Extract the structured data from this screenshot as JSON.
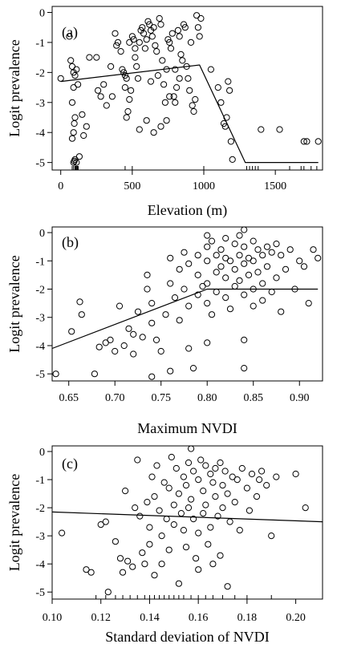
{
  "chart_data": [
    {
      "type": "scatter",
      "panel_label": "(a)",
      "xlabel": "Elevation (m)",
      "ylabel": "Logit prevalence",
      "xlim": [
        -60,
        1830
      ],
      "ylim": [
        -5.25,
        0.2
      ],
      "xticks": [
        0,
        500,
        1000,
        1500
      ],
      "yticks": [
        0,
        -1,
        -2,
        -3,
        -4,
        -5
      ],
      "fit_line": [
        [
          0,
          -2.3
        ],
        [
          970,
          -1.75
        ],
        [
          1290,
          -5.0
        ],
        [
          1800,
          -5.0
        ]
      ],
      "rug": [
        80,
        90,
        100,
        105,
        110,
        115,
        118,
        122,
        450,
        500,
        1000,
        1300,
        1320,
        1340,
        1360,
        1380,
        1600,
        1680,
        1700,
        1750,
        1790
      ],
      "points": [
        [
          0,
          -2.2
        ],
        [
          60,
          -0.8
        ],
        [
          70,
          -1.6
        ],
        [
          80,
          -1.8
        ],
        [
          90,
          -2.0
        ],
        [
          100,
          -2.1
        ],
        [
          110,
          -1.9
        ],
        [
          120,
          -2.4
        ],
        [
          90,
          -2.5
        ],
        [
          80,
          -3.0
        ],
        [
          100,
          -3.5
        ],
        [
          95,
          -3.7
        ],
        [
          90,
          -4.0
        ],
        [
          80,
          -4.2
        ],
        [
          100,
          -4.9
        ],
        [
          110,
          -5.0
        ],
        [
          90,
          -5.0
        ],
        [
          95,
          -4.95
        ],
        [
          130,
          -4.8
        ],
        [
          150,
          -3.4
        ],
        [
          160,
          -4.1
        ],
        [
          180,
          -3.8
        ],
        [
          200,
          -1.5
        ],
        [
          250,
          -1.5
        ],
        [
          260,
          -2.6
        ],
        [
          280,
          -2.8
        ],
        [
          300,
          -2.4
        ],
        [
          320,
          -3.1
        ],
        [
          350,
          -1.8
        ],
        [
          360,
          -2.8
        ],
        [
          380,
          -0.7
        ],
        [
          390,
          -1.1
        ],
        [
          400,
          -1.0
        ],
        [
          420,
          -1.3
        ],
        [
          430,
          -1.9
        ],
        [
          440,
          -2.0
        ],
        [
          450,
          -2.1
        ],
        [
          460,
          -2.2
        ],
        [
          450,
          -2.5
        ],
        [
          460,
          -3.5
        ],
        [
          470,
          -3.3
        ],
        [
          480,
          -2.9
        ],
        [
          490,
          -2.6
        ],
        [
          500,
          -0.8
        ],
        [
          510,
          -0.9
        ],
        [
          520,
          -1.5
        ],
        [
          530,
          -1.8
        ],
        [
          540,
          -2.2
        ],
        [
          550,
          -1.0
        ],
        [
          560,
          -0.6
        ],
        [
          570,
          -0.5
        ],
        [
          580,
          -0.7
        ],
        [
          590,
          -1.2
        ],
        [
          600,
          -0.9
        ],
        [
          610,
          -0.3
        ],
        [
          620,
          -0.4
        ],
        [
          630,
          -0.6
        ],
        [
          640,
          -0.8
        ],
        [
          650,
          -0.5
        ],
        [
          660,
          -1.1
        ],
        [
          670,
          -1.3
        ],
        [
          680,
          -2.1
        ],
        [
          690,
          -0.2
        ],
        [
          700,
          -0.4
        ],
        [
          710,
          -1.6
        ],
        [
          720,
          -2.4
        ],
        [
          730,
          -3.0
        ],
        [
          740,
          -3.6
        ],
        [
          750,
          -0.9
        ],
        [
          760,
          -1.0
        ],
        [
          770,
          -1.2
        ],
        [
          780,
          -0.7
        ],
        [
          790,
          -2.8
        ],
        [
          800,
          -3.0
        ],
        [
          810,
          -2.5
        ],
        [
          820,
          -0.6
        ],
        [
          830,
          -0.8
        ],
        [
          840,
          -1.4
        ],
        [
          850,
          -1.6
        ],
        [
          860,
          -0.4
        ],
        [
          870,
          -0.5
        ],
        [
          880,
          -1.8
        ],
        [
          890,
          -2.2
        ],
        [
          900,
          -2.6
        ],
        [
          910,
          -1.0
        ],
        [
          920,
          -3.1
        ],
        [
          930,
          -3.3
        ],
        [
          940,
          -2.9
        ],
        [
          950,
          -0.1
        ],
        [
          960,
          -0.5
        ],
        [
          970,
          -0.8
        ],
        [
          980,
          -0.2
        ],
        [
          1050,
          -1.9
        ],
        [
          1100,
          -2.5
        ],
        [
          1120,
          -3.0
        ],
        [
          1140,
          -3.7
        ],
        [
          1150,
          -3.8
        ],
        [
          1160,
          -3.5
        ],
        [
          1170,
          -2.3
        ],
        [
          1180,
          -2.6
        ],
        [
          1190,
          -4.3
        ],
        [
          1200,
          -4.9
        ],
        [
          1400,
          -3.9
        ],
        [
          1530,
          -3.9
        ],
        [
          1700,
          -4.3
        ],
        [
          1720,
          -4.3
        ],
        [
          1800,
          -4.3
        ],
        [
          650,
          -4.0
        ],
        [
          550,
          -3.9
        ],
        [
          600,
          -3.6
        ],
        [
          700,
          -3.8
        ],
        [
          480,
          -1.0
        ],
        [
          520,
          -1.2
        ],
        [
          740,
          -1.9
        ],
        [
          760,
          -2.8
        ],
        [
          630,
          -2.3
        ],
        [
          800,
          -1.9
        ],
        [
          830,
          -2.2
        ]
      ]
    },
    {
      "type": "scatter",
      "panel_label": "(b)",
      "xlabel": "Maximum NVDI",
      "ylabel": "Logit prevalence",
      "xlim": [
        0.632,
        0.925
      ],
      "ylim": [
        -5.25,
        0.2
      ],
      "xticks": [
        0.65,
        0.7,
        0.75,
        0.8,
        0.85,
        0.9
      ],
      "xtick_labels": [
        "0.65",
        "0.70",
        "0.75",
        "0.80",
        "0.85",
        "0.90"
      ],
      "yticks": [
        0,
        -1,
        -2,
        -3,
        -4,
        -5
      ],
      "fit_line": [
        [
          0.632,
          -4.1
        ],
        [
          0.8,
          -2.0
        ],
        [
          0.92,
          -2.0
        ]
      ],
      "points": [
        [
          0.636,
          -5.0
        ],
        [
          0.653,
          -3.5
        ],
        [
          0.662,
          -2.45
        ],
        [
          0.664,
          -2.9
        ],
        [
          0.678,
          -5.0
        ],
        [
          0.683,
          -4.05
        ],
        [
          0.69,
          -3.9
        ],
        [
          0.695,
          -3.8
        ],
        [
          0.7,
          -4.2
        ],
        [
          0.705,
          -2.6
        ],
        [
          0.71,
          -4.0
        ],
        [
          0.715,
          -3.4
        ],
        [
          0.72,
          -3.6
        ],
        [
          0.72,
          -4.3
        ],
        [
          0.725,
          -2.8
        ],
        [
          0.73,
          -3.7
        ],
        [
          0.735,
          -2.0
        ],
        [
          0.735,
          -1.5
        ],
        [
          0.74,
          -2.5
        ],
        [
          0.74,
          -3.2
        ],
        [
          0.74,
          -5.1
        ],
        [
          0.745,
          -3.8
        ],
        [
          0.75,
          -4.2
        ],
        [
          0.755,
          -2.9
        ],
        [
          0.76,
          -0.9
        ],
        [
          0.76,
          -1.8
        ],
        [
          0.76,
          -4.9
        ],
        [
          0.765,
          -2.3
        ],
        [
          0.77,
          -1.3
        ],
        [
          0.77,
          -3.1
        ],
        [
          0.775,
          -0.7
        ],
        [
          0.775,
          -2.0
        ],
        [
          0.78,
          -1.1
        ],
        [
          0.78,
          -2.6
        ],
        [
          0.78,
          -4.1
        ],
        [
          0.785,
          -4.8
        ],
        [
          0.79,
          -0.8
        ],
        [
          0.79,
          -1.5
        ],
        [
          0.79,
          -2.2
        ],
        [
          0.795,
          -1.9
        ],
        [
          0.8,
          -0.1
        ],
        [
          0.8,
          -0.5
        ],
        [
          0.8,
          -1.0
        ],
        [
          0.8,
          -1.8
        ],
        [
          0.8,
          -2.5
        ],
        [
          0.8,
          -3.9
        ],
        [
          0.805,
          -0.3
        ],
        [
          0.805,
          -2.9
        ],
        [
          0.81,
          -0.8
        ],
        [
          0.81,
          -1.4
        ],
        [
          0.81,
          -2.1
        ],
        [
          0.815,
          -0.6
        ],
        [
          0.815,
          -1.2
        ],
        [
          0.82,
          -0.2
        ],
        [
          0.82,
          -0.9
        ],
        [
          0.82,
          -1.6
        ],
        [
          0.82,
          -2.3
        ],
        [
          0.825,
          -1.0
        ],
        [
          0.825,
          -2.7
        ],
        [
          0.83,
          -0.4
        ],
        [
          0.83,
          -1.3
        ],
        [
          0.83,
          -1.9
        ],
        [
          0.835,
          -0.1
        ],
        [
          0.835,
          -0.8
        ],
        [
          0.835,
          -1.7
        ],
        [
          0.84,
          0.1
        ],
        [
          0.84,
          -0.5
        ],
        [
          0.84,
          -1.1
        ],
        [
          0.84,
          -2.2
        ],
        [
          0.84,
          -3.8
        ],
        [
          0.84,
          -4.8
        ],
        [
          0.845,
          -0.9
        ],
        [
          0.845,
          -1.5
        ],
        [
          0.85,
          -0.3
        ],
        [
          0.85,
          -1.0
        ],
        [
          0.85,
          -2.0
        ],
        [
          0.85,
          -2.6
        ],
        [
          0.855,
          -0.6
        ],
        [
          0.855,
          -1.4
        ],
        [
          0.86,
          -0.8
        ],
        [
          0.86,
          -1.8
        ],
        [
          0.86,
          -2.4
        ],
        [
          0.865,
          -0.5
        ],
        [
          0.865,
          -1.2
        ],
        [
          0.87,
          -0.7
        ],
        [
          0.87,
          -2.1
        ],
        [
          0.875,
          -0.4
        ],
        [
          0.875,
          -1.6
        ],
        [
          0.88,
          -0.8
        ],
        [
          0.88,
          -2.8
        ],
        [
          0.885,
          -1.3
        ],
        [
          0.89,
          -0.6
        ],
        [
          0.895,
          -2.0
        ],
        [
          0.9,
          -1.0
        ],
        [
          0.905,
          -1.2
        ],
        [
          0.91,
          -2.5
        ],
        [
          0.915,
          -0.6
        ],
        [
          0.92,
          -0.9
        ]
      ]
    },
    {
      "type": "scatter",
      "panel_label": "(c)",
      "xlabel": "Standard deviation of NVDI",
      "ylabel": "Logit prevalence",
      "xlim": [
        0.1,
        0.211
      ],
      "ylim": [
        -5.25,
        0.2
      ],
      "xticks": [
        0.1,
        0.12,
        0.14,
        0.16,
        0.18,
        0.2
      ],
      "xtick_labels": [
        "0.10",
        "0.12",
        "0.14",
        "0.16",
        "0.18",
        "0.20"
      ],
      "yticks": [
        0,
        -1,
        -2,
        -3,
        -4,
        -5
      ],
      "fit_line": [
        [
          0.1,
          -2.15
        ],
        [
          0.211,
          -2.5
        ]
      ],
      "rug": [
        0.118,
        0.122,
        0.126,
        0.129,
        0.132,
        0.135,
        0.138,
        0.14,
        0.142,
        0.144,
        0.146,
        0.148,
        0.15,
        0.152,
        0.154,
        0.157,
        0.16,
        0.163,
        0.166,
        0.17,
        0.175,
        0.18,
        0.19
      ],
      "points": [
        [
          0.104,
          -2.9
        ],
        [
          0.114,
          -4.2
        ],
        [
          0.116,
          -4.3
        ],
        [
          0.12,
          -2.6
        ],
        [
          0.122,
          -2.5
        ],
        [
          0.123,
          -5.0
        ],
        [
          0.126,
          -3.2
        ],
        [
          0.128,
          -3.8
        ],
        [
          0.129,
          -4.3
        ],
        [
          0.13,
          -1.4
        ],
        [
          0.131,
          -3.9
        ],
        [
          0.133,
          -4.1
        ],
        [
          0.134,
          -2.0
        ],
        [
          0.135,
          -0.3
        ],
        [
          0.136,
          -2.3
        ],
        [
          0.137,
          -3.6
        ],
        [
          0.138,
          -4.0
        ],
        [
          0.139,
          -1.8
        ],
        [
          0.14,
          -2.7
        ],
        [
          0.14,
          -3.3
        ],
        [
          0.141,
          -0.9
        ],
        [
          0.142,
          -1.6
        ],
        [
          0.142,
          -4.4
        ],
        [
          0.143,
          -0.5
        ],
        [
          0.144,
          -2.1
        ],
        [
          0.145,
          -3.0
        ],
        [
          0.145,
          -4.0
        ],
        [
          0.146,
          -1.1
        ],
        [
          0.147,
          -2.4
        ],
        [
          0.148,
          -1.3
        ],
        [
          0.148,
          -3.5
        ],
        [
          0.149,
          -0.2
        ],
        [
          0.15,
          -1.9
        ],
        [
          0.15,
          -2.6
        ],
        [
          0.151,
          -0.6
        ],
        [
          0.152,
          -1.5
        ],
        [
          0.152,
          -4.7
        ],
        [
          0.153,
          -2.2
        ],
        [
          0.154,
          -0.9
        ],
        [
          0.154,
          -2.8
        ],
        [
          0.155,
          -1.2
        ],
        [
          0.155,
          -3.4
        ],
        [
          0.156,
          -0.4
        ],
        [
          0.156,
          -2.0
        ],
        [
          0.157,
          0.1
        ],
        [
          0.157,
          -1.7
        ],
        [
          0.158,
          -0.7
        ],
        [
          0.158,
          -2.4
        ],
        [
          0.159,
          -3.8
        ],
        [
          0.16,
          -1.0
        ],
        [
          0.16,
          -2.9
        ],
        [
          0.16,
          -4.2
        ],
        [
          0.161,
          -0.3
        ],
        [
          0.162,
          -1.4
        ],
        [
          0.162,
          -2.2
        ],
        [
          0.163,
          -0.5
        ],
        [
          0.163,
          -1.9
        ],
        [
          0.164,
          -3.3
        ],
        [
          0.165,
          -0.8
        ],
        [
          0.165,
          -2.7
        ],
        [
          0.166,
          -1.1
        ],
        [
          0.166,
          -4.0
        ],
        [
          0.167,
          -0.6
        ],
        [
          0.167,
          -1.6
        ],
        [
          0.168,
          -2.3
        ],
        [
          0.169,
          -0.4
        ],
        [
          0.169,
          -3.7
        ],
        [
          0.17,
          -1.2
        ],
        [
          0.17,
          -2.0
        ],
        [
          0.171,
          -0.7
        ],
        [
          0.172,
          -1.5
        ],
        [
          0.172,
          -4.8
        ],
        [
          0.173,
          -2.5
        ],
        [
          0.174,
          -0.9
        ],
        [
          0.175,
          -1.8
        ],
        [
          0.176,
          -1.0
        ],
        [
          0.177,
          -2.8
        ],
        [
          0.178,
          -0.6
        ],
        [
          0.18,
          -1.3
        ],
        [
          0.181,
          -2.1
        ],
        [
          0.182,
          -0.8
        ],
        [
          0.184,
          -1.6
        ],
        [
          0.185,
          -1.0
        ],
        [
          0.186,
          -0.7
        ],
        [
          0.188,
          -1.2
        ],
        [
          0.19,
          -3.0
        ],
        [
          0.192,
          -0.9
        ],
        [
          0.2,
          -0.8
        ],
        [
          0.204,
          -2.0
        ]
      ]
    }
  ]
}
